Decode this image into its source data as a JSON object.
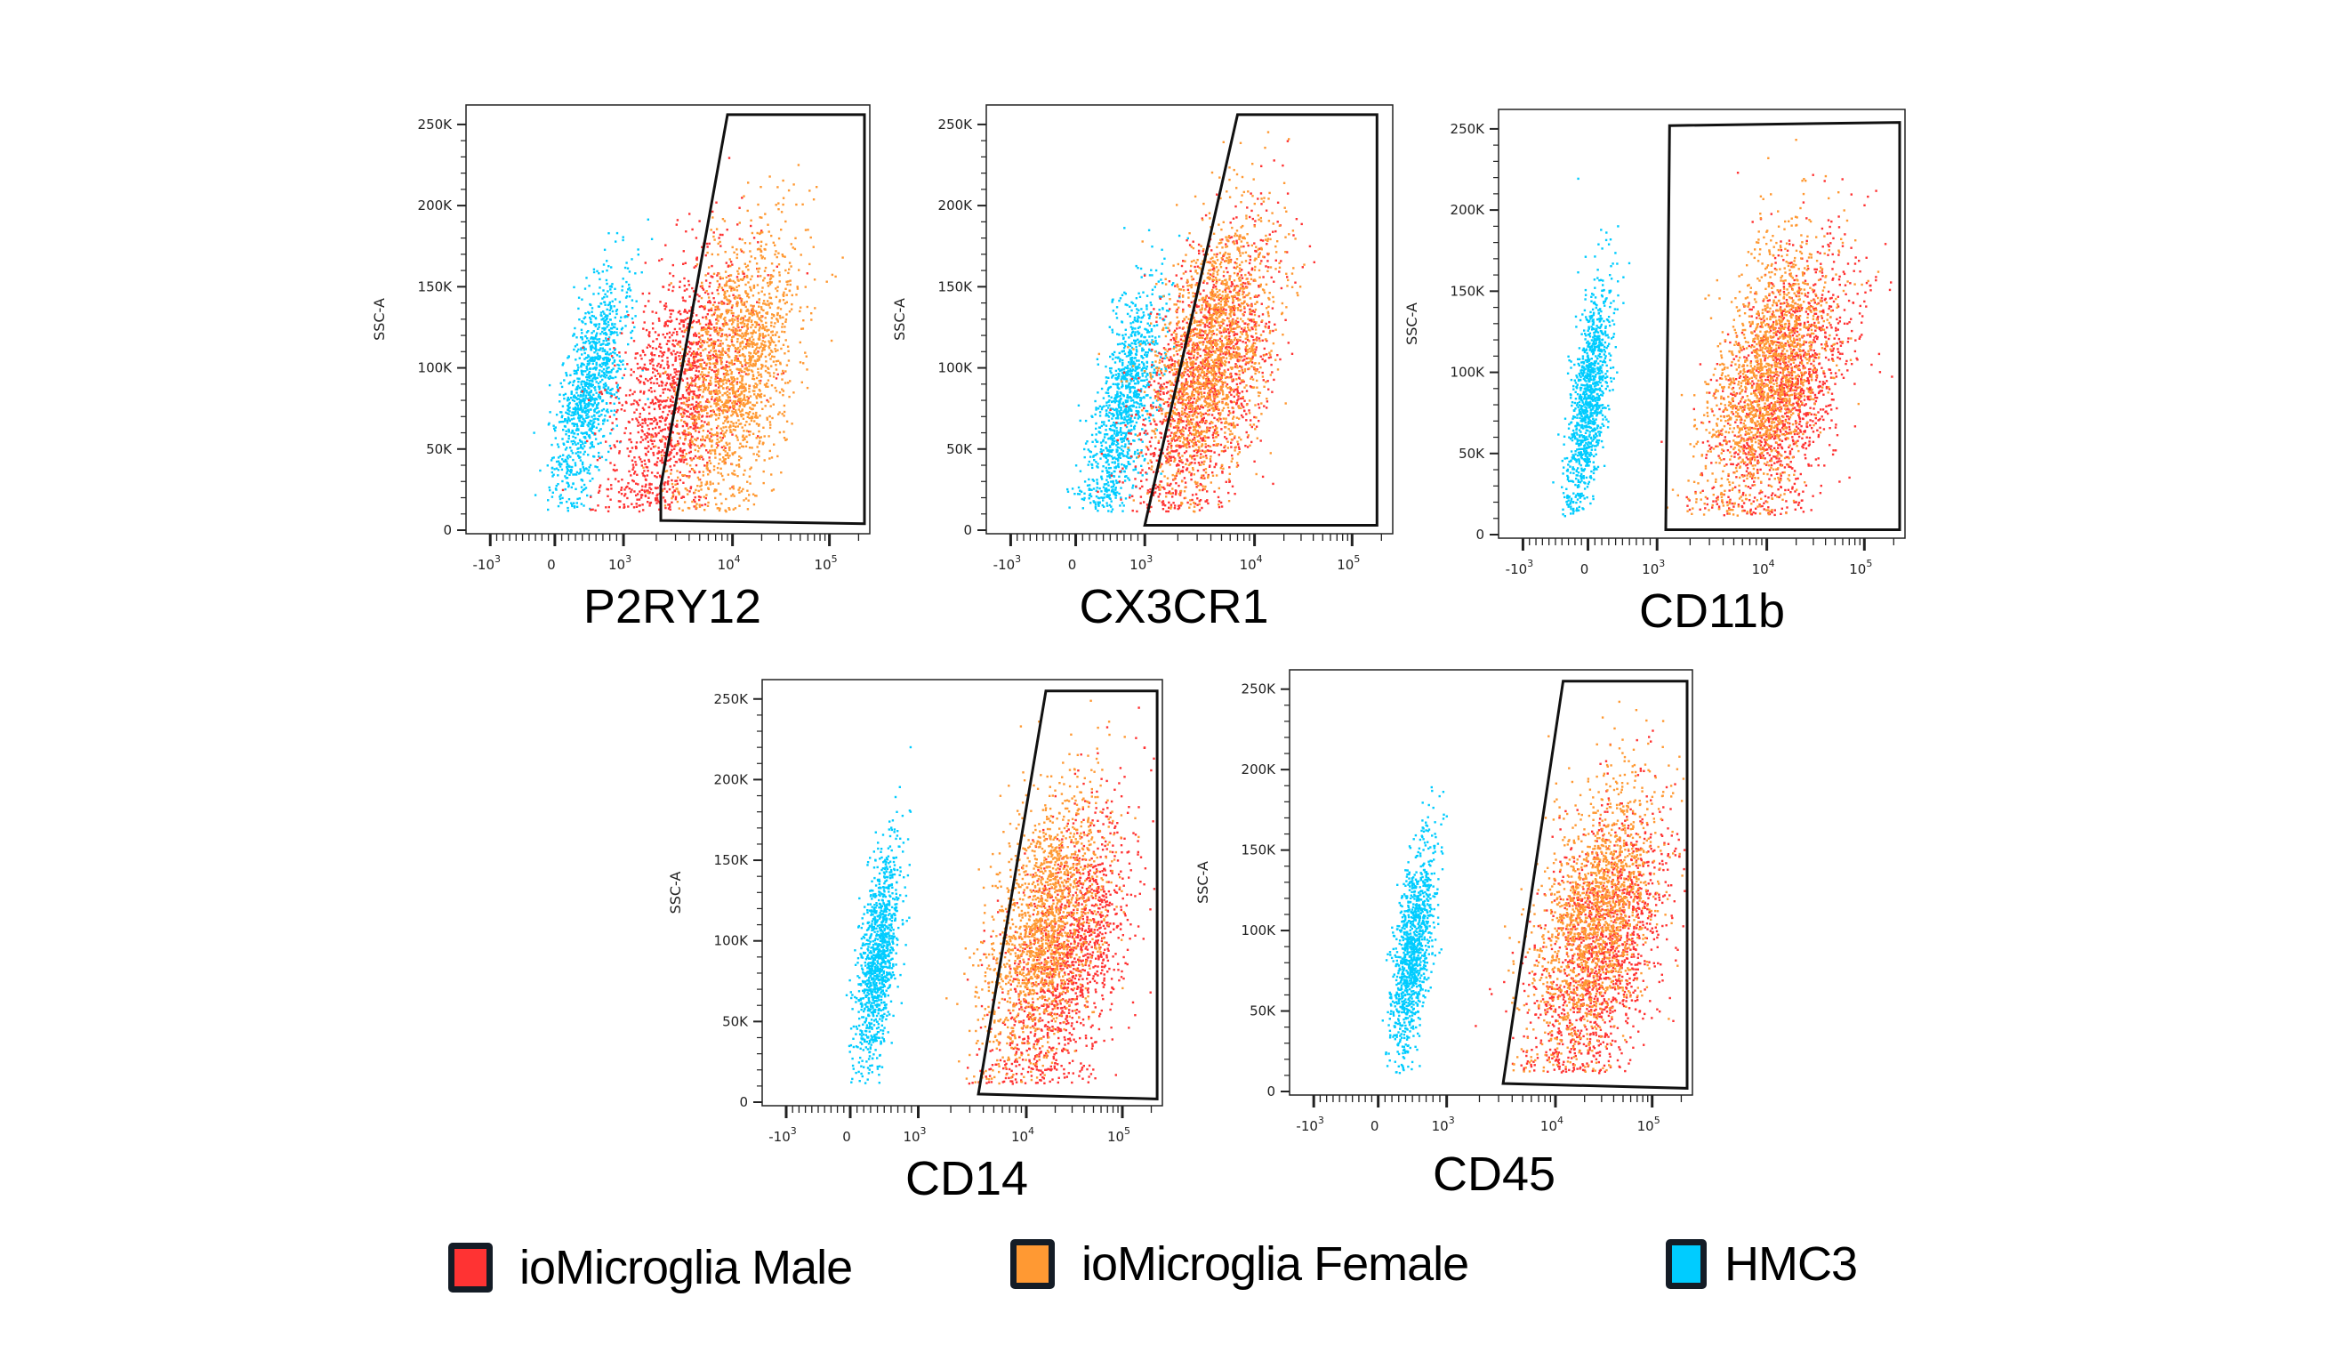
{
  "legend": [
    {
      "label": "ioMicroglia Male",
      "color": "#ff3333"
    },
    {
      "label": "ioMicroglia Female",
      "color": "#ff9933"
    },
    {
      "label": "HMC3",
      "color": "#00ccff"
    }
  ],
  "chart_data": [
    {
      "type": "scatter",
      "xlabel": "P2RY12",
      "ylabel": "SSC-A",
      "x_scale": "biexponential",
      "x_ticks": [
        {
          "base": "-10",
          "exp": "3",
          "value": -1000
        },
        {
          "base": "0",
          "exp": "",
          "value": 0
        },
        {
          "base": "10",
          "exp": "3",
          "value": 1000
        },
        {
          "base": "10",
          "exp": "4",
          "value": 10000
        },
        {
          "base": "10",
          "exp": "5",
          "value": 100000
        }
      ],
      "y_ticks": [
        "0",
        "50K",
        "100K",
        "150K",
        "200K",
        "250K"
      ],
      "ylim": [
        0,
        262000
      ],
      "gate": [
        [
          2200,
          27000
        ],
        [
          9000,
          256000
        ],
        [
          230000,
          256000
        ],
        [
          230000,
          4000
        ],
        [
          2200,
          6000
        ]
      ],
      "populations": [
        {
          "name": "HMC3",
          "x_center": 500,
          "y_center": 85000
        },
        {
          "name": "ioMicroglia Male",
          "x_center": 3000,
          "y_center": 85000
        },
        {
          "name": "ioMicroglia Female",
          "x_center": 11000,
          "y_center": 100000
        }
      ]
    },
    {
      "type": "scatter",
      "xlabel": "CX3CR1",
      "ylabel": "SSC-A",
      "x_scale": "biexponential",
      "x_ticks": [
        {
          "base": "-10",
          "exp": "3",
          "value": -1000
        },
        {
          "base": "0",
          "exp": "",
          "value": 0
        },
        {
          "base": "10",
          "exp": "3",
          "value": 1000
        },
        {
          "base": "10",
          "exp": "4",
          "value": 10000
        },
        {
          "base": "10",
          "exp": "5",
          "value": 100000
        }
      ],
      "y_ticks": [
        "0",
        "50K",
        "100K",
        "150K",
        "200K",
        "250K"
      ],
      "ylim": [
        0,
        262000
      ],
      "gate": [
        [
          7000,
          256000
        ],
        [
          180000,
          256000
        ],
        [
          180000,
          3000
        ],
        [
          1000,
          3000
        ]
      ],
      "populations": [
        {
          "name": "HMC3",
          "x_center": 700,
          "y_center": 80000
        },
        {
          "name": "ioMicroglia Male",
          "x_center": 3500,
          "y_center": 95000
        },
        {
          "name": "ioMicroglia Female",
          "x_center": 4000,
          "y_center": 110000
        }
      ]
    },
    {
      "type": "scatter",
      "xlabel": "CD11b",
      "ylabel": "SSC-A",
      "x_scale": "biexponential",
      "x_ticks": [
        {
          "base": "-10",
          "exp": "3",
          "value": -1000
        },
        {
          "base": "0",
          "exp": "",
          "value": 0
        },
        {
          "base": "10",
          "exp": "3",
          "value": 1000
        },
        {
          "base": "10",
          "exp": "4",
          "value": 10000
        },
        {
          "base": "10",
          "exp": "5",
          "value": 100000
        }
      ],
      "y_ticks": [
        "0",
        "50K",
        "100K",
        "150K",
        "200K",
        "250K"
      ],
      "ylim": [
        0,
        262000
      ],
      "gate": [
        [
          1300,
          252000
        ],
        [
          230000,
          254000
        ],
        [
          230000,
          3000
        ],
        [
          1200,
          3000
        ]
      ],
      "populations": [
        {
          "name": "HMC3",
          "x_center": 0,
          "y_center": 85000
        },
        {
          "name": "ioMicroglia Male",
          "x_center": 15000,
          "y_center": 90000
        },
        {
          "name": "ioMicroglia Female",
          "x_center": 10000,
          "y_center": 100000
        }
      ]
    },
    {
      "type": "scatter",
      "xlabel": "CD14",
      "ylabel": "SSC-A",
      "x_scale": "biexponential",
      "x_ticks": [
        {
          "base": "-10",
          "exp": "3",
          "value": -1000
        },
        {
          "base": "0",
          "exp": "",
          "value": 0
        },
        {
          "base": "10",
          "exp": "3",
          "value": 1000
        },
        {
          "base": "10",
          "exp": "4",
          "value": 10000
        },
        {
          "base": "10",
          "exp": "5",
          "value": 100000
        }
      ],
      "y_ticks": [
        "0",
        "50K",
        "100K",
        "150K",
        "200K",
        "250K"
      ],
      "ylim": [
        0,
        262000
      ],
      "gate": [
        [
          16000,
          255000
        ],
        [
          230000,
          255000
        ],
        [
          230000,
          2000
        ],
        [
          3600,
          5000
        ]
      ],
      "populations": [
        {
          "name": "HMC3",
          "x_center": 400,
          "y_center": 90000
        },
        {
          "name": "ioMicroglia Male",
          "x_center": 25000,
          "y_center": 90000
        },
        {
          "name": "ioMicroglia Female",
          "x_center": 15000,
          "y_center": 110000
        }
      ]
    },
    {
      "type": "scatter",
      "xlabel": "CD45",
      "ylabel": "SSC-A",
      "x_scale": "biexponential",
      "x_ticks": [
        {
          "base": "-10",
          "exp": "3",
          "value": -1000
        },
        {
          "base": "0",
          "exp": "",
          "value": 0
        },
        {
          "base": "10",
          "exp": "3",
          "value": 1000
        },
        {
          "base": "10",
          "exp": "4",
          "value": 10000
        },
        {
          "base": "10",
          "exp": "5",
          "value": 100000
        }
      ],
      "y_ticks": [
        "0",
        "50K",
        "100K",
        "150K",
        "200K",
        "250K"
      ],
      "ylim": [
        0,
        262000
      ],
      "gate": [
        [
          12000,
          255000
        ],
        [
          230000,
          255000
        ],
        [
          230000,
          2000
        ],
        [
          3300,
          5000
        ]
      ],
      "populations": [
        {
          "name": "HMC3",
          "x_center": 500,
          "y_center": 90000
        },
        {
          "name": "ioMicroglia Male",
          "x_center": 30000,
          "y_center": 90000
        },
        {
          "name": "ioMicroglia Female",
          "x_center": 25000,
          "y_center": 110000
        }
      ]
    }
  ]
}
